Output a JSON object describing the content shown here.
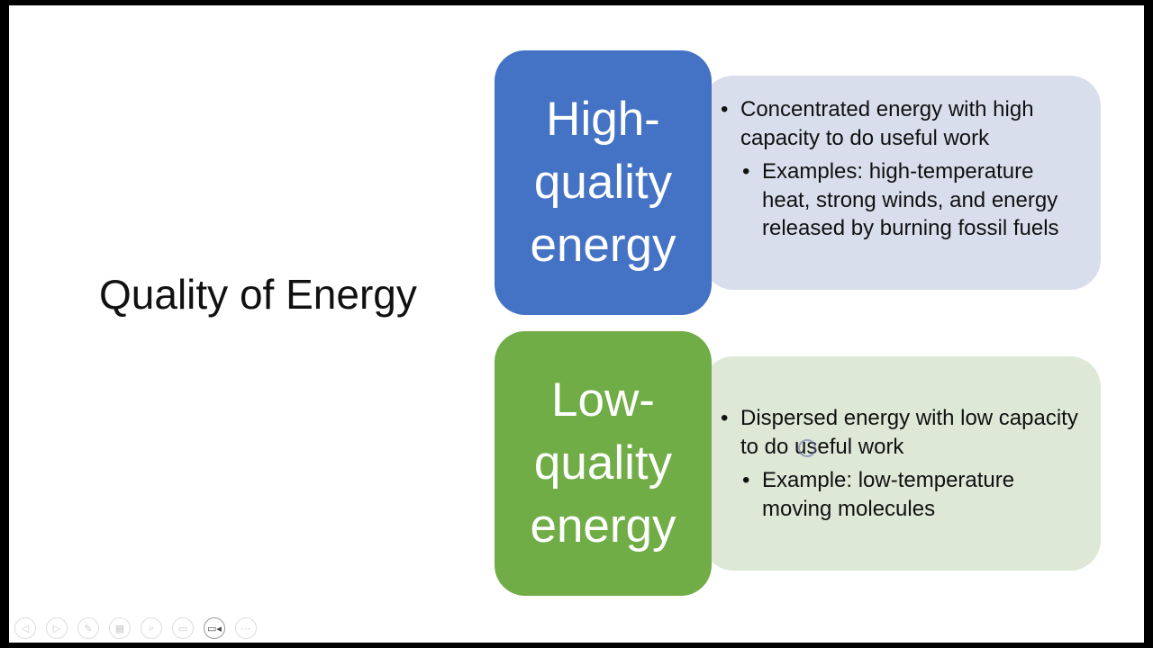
{
  "slide": {
    "title": "Quality of Energy",
    "high": {
      "label": "High-\nquality\nenergy",
      "color": "#4472c4",
      "bullet": "Concentrated energy with high capacity to do useful work",
      "sub_bullet": "Examples: high-temperature heat, strong winds, and energy released by burning fossil fuels"
    },
    "low": {
      "label": "Low-\nquality\nenergy",
      "color": "#70ad47",
      "bullet": "Dispersed energy with low capacity to do useful work",
      "sub_bullet": "Example: low-temperature moving molecules"
    }
  },
  "toolbar": {
    "icons": [
      "previous-icon",
      "next-icon",
      "pen-icon",
      "slides-icon",
      "zoom-icon",
      "subtitles-icon",
      "video-icon",
      "more-icon"
    ]
  }
}
